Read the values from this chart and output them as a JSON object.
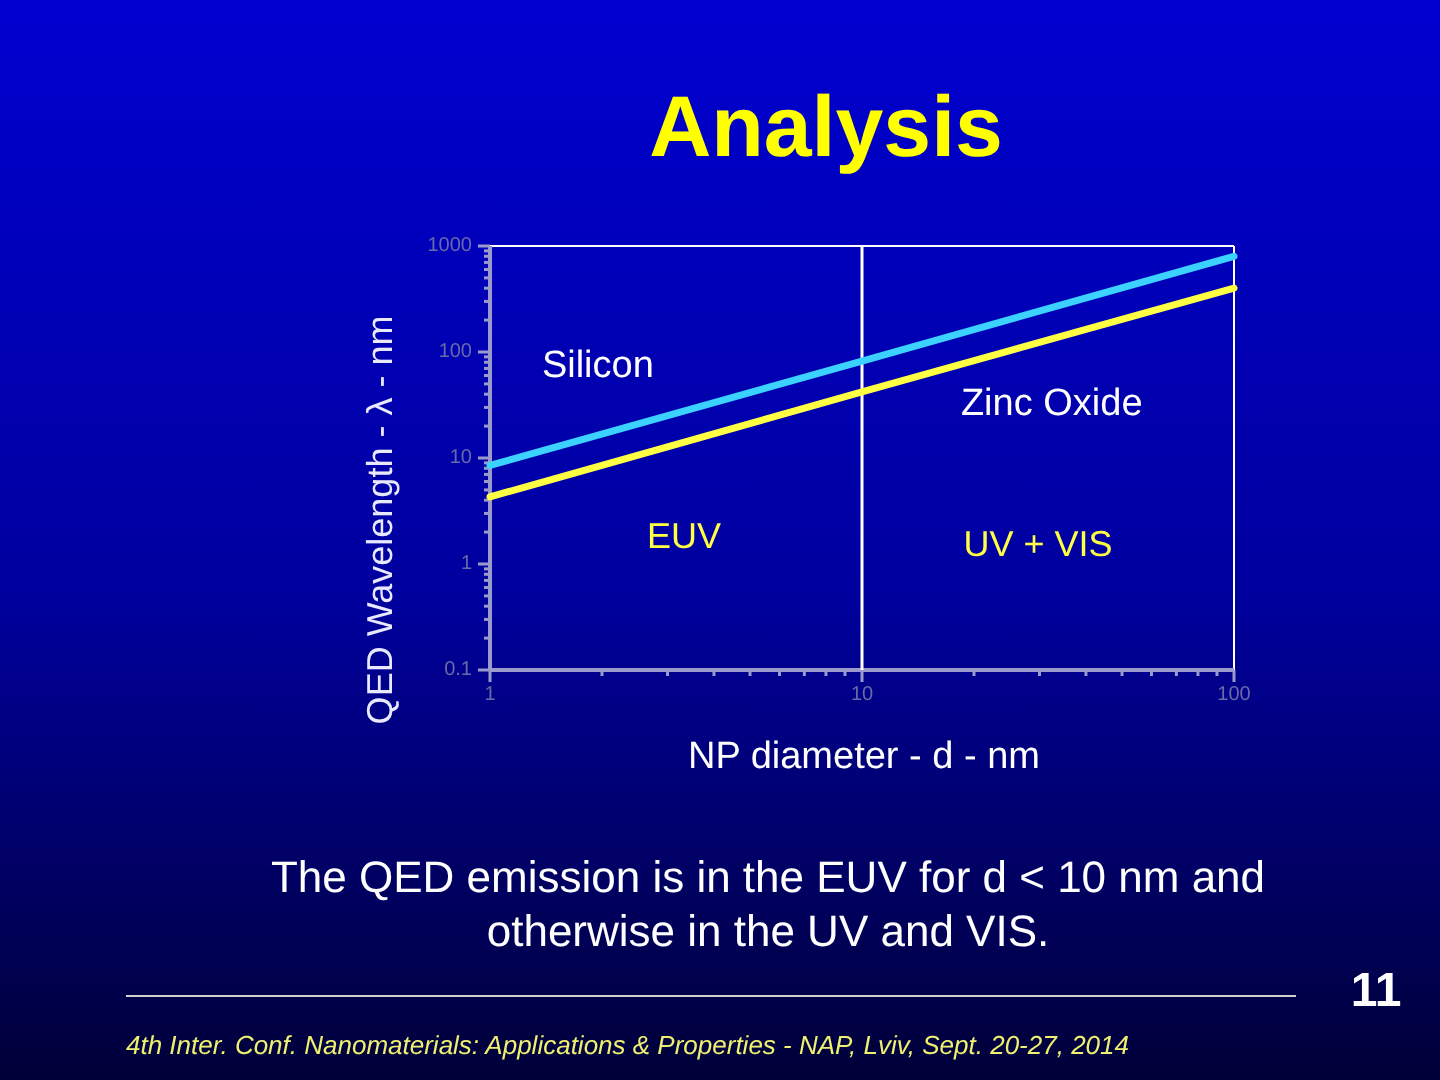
{
  "chart_data": {
    "type": "line",
    "title": "Analysis",
    "xlabel": "NP diameter - d - nm",
    "ylabel": "QED Wavelength  - λ - nm",
    "log": "xy",
    "line_style": "solid",
    "xlim": [
      1,
      100
    ],
    "ylim": [
      0.1,
      1000
    ],
    "xticks": [
      1,
      {
        "value": 2,
        "label": null
      },
      {
        "value": 3,
        "label": null
      },
      {
        "value": 4,
        "label": null
      },
      {
        "value": 5,
        "label": null
      },
      {
        "value": 6,
        "label": null
      },
      {
        "value": 7,
        "label": null
      },
      {
        "value": 8,
        "label": null
      },
      {
        "value": 9,
        "label": null
      },
      10,
      {
        "value": 20,
        "label": null
      },
      {
        "value": 30,
        "label": null
      },
      {
        "value": 40,
        "label": null
      },
      {
        "value": 50,
        "label": null
      },
      {
        "value": 60,
        "label": null
      },
      {
        "value": 70,
        "label": null
      },
      {
        "value": 80,
        "label": null
      },
      {
        "value": 90,
        "label": null
      },
      100
    ],
    "yticks": [
      0.1,
      {
        "value": 0.2,
        "label": null
      },
      {
        "value": 0.3,
        "label": null
      },
      {
        "value": 0.4,
        "label": null
      },
      {
        "value": 0.5,
        "label": null
      },
      {
        "value": 0.6,
        "label": null
      },
      {
        "value": 0.7,
        "label": null
      },
      {
        "value": 0.8,
        "label": null
      },
      {
        "value": 0.9,
        "label": null
      },
      1,
      {
        "value": 2,
        "label": null
      },
      {
        "value": 3,
        "label": null
      },
      {
        "value": 4,
        "label": null
      },
      {
        "value": 5,
        "label": null
      },
      {
        "value": 6,
        "label": null
      },
      {
        "value": 7,
        "label": null
      },
      {
        "value": 8,
        "label": null
      },
      {
        "value": 9,
        "label": null
      },
      10,
      {
        "value": 20,
        "label": null
      },
      {
        "value": 30,
        "label": null
      },
      {
        "value": 40,
        "label": null
      },
      {
        "value": 50,
        "label": null
      },
      {
        "value": 60,
        "label": null
      },
      {
        "value": 70,
        "label": null
      },
      {
        "value": 80,
        "label": null
      },
      {
        "value": 90,
        "label": null
      },
      100,
      {
        "value": 200,
        "label": null
      },
      {
        "value": 300,
        "label": null
      },
      {
        "value": 400,
        "label": null
      },
      {
        "value": 500,
        "label": null
      },
      {
        "value": 600,
        "label": null
      },
      {
        "value": 700,
        "label": null
      },
      {
        "value": 800,
        "label": null
      },
      {
        "value": 900,
        "label": null
      },
      1000
    ],
    "x": [
      1,
      10,
      100
    ],
    "series": [
      {
        "name": "Silicon",
        "color": "#3cd2ff",
        "values": [
          8.5,
          82,
          800
        ]
      },
      {
        "name": "Zinc Oxide",
        "color": "#ffff44",
        "values": [
          4.3,
          42,
          400
        ]
      }
    ],
    "ref_lines": [
      {
        "axis": "x",
        "value": 10,
        "color": "#ffffff"
      }
    ],
    "annotations": [
      "EUV",
      "UV + VIS",
      "The QED emission is in the EUV for d < 10 nm and otherwise in the UV and VIS.",
      "11",
      "4th Inter. Conf. Nanomaterials: Applications & Properties - NAP, Lviv, Sept. 20-27, 2014"
    ]
  }
}
